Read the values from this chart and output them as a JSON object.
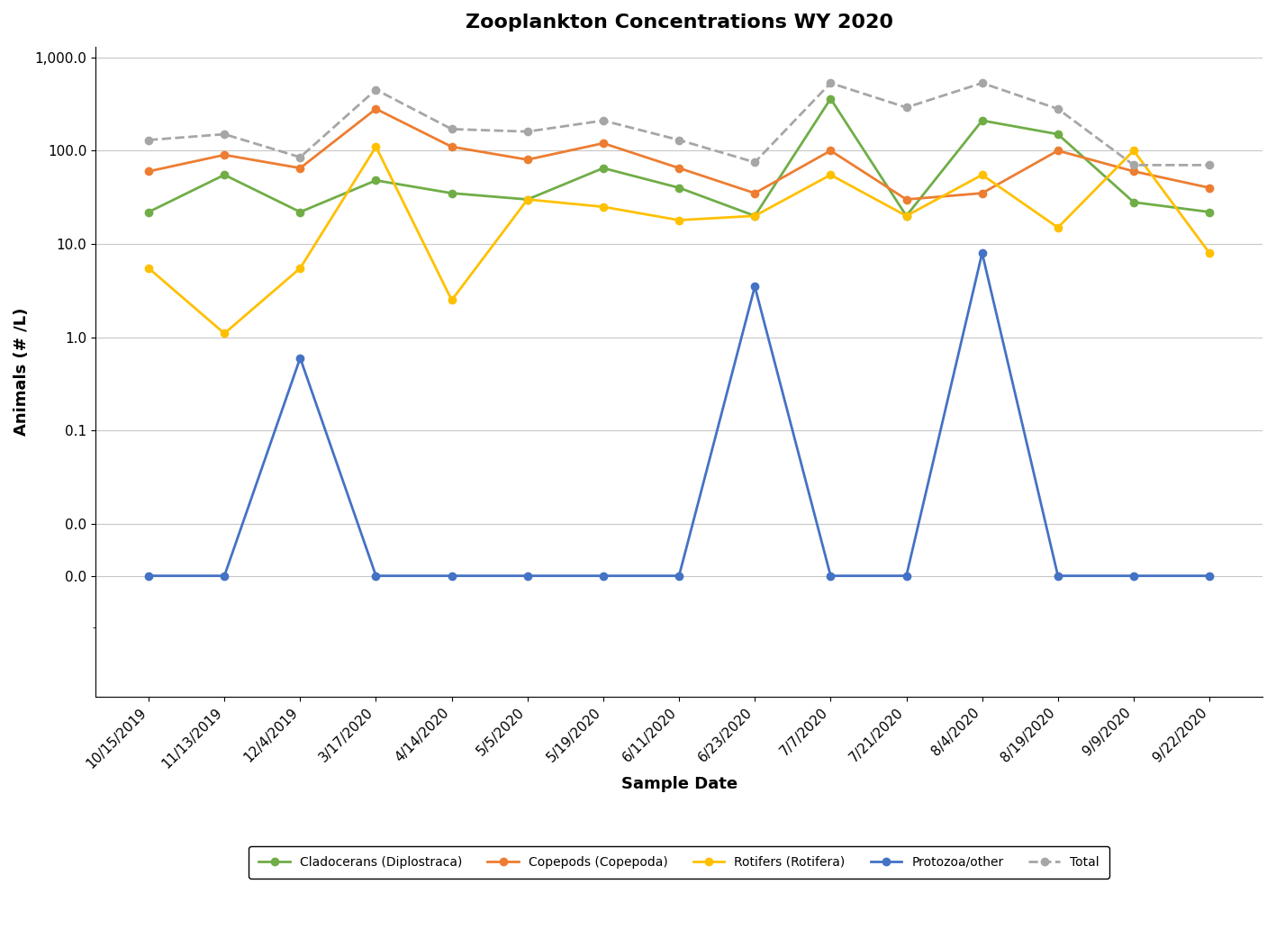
{
  "title": "Zooplankton Concentrations WY 2020",
  "xlabel": "Sample Date",
  "ylabel": "Animals (# /L)",
  "dates": [
    "10/15/2019",
    "11/13/2019",
    "12/4/2019",
    "3/17/2020",
    "4/14/2020",
    "5/5/2020",
    "5/19/2020",
    "6/11/2020",
    "6/23/2020",
    "7/7/2020",
    "7/21/2020",
    "8/4/2020",
    "8/19/2020",
    "9/9/2020",
    "9/22/2020"
  ],
  "series": {
    "Cladocerans (Diplostraca)": {
      "color": "#70AD47",
      "values": [
        22,
        55,
        22,
        48,
        35,
        30,
        65,
        40,
        20,
        360,
        20,
        210,
        150,
        28,
        22
      ],
      "marker": "o",
      "linestyle": "-",
      "linewidth": 2.0,
      "markersize": 6
    },
    "Copepods (Copepoda)": {
      "color": "#ED7D31",
      "values": [
        60,
        90,
        65,
        280,
        110,
        80,
        120,
        65,
        35,
        100,
        30,
        35,
        100,
        60,
        40
      ],
      "marker": "o",
      "linestyle": "-",
      "linewidth": 2.0,
      "markersize": 6
    },
    "Rotifers (Rotifera)": {
      "color": "#FFC000",
      "values": [
        5.5,
        1.1,
        5.5,
        110,
        2.5,
        30,
        25,
        18,
        20,
        55,
        20,
        55,
        15,
        100,
        8
      ],
      "marker": "o",
      "linestyle": "-",
      "linewidth": 2.0,
      "markersize": 6
    },
    "Protozoa/other": {
      "color": "#4472C4",
      "values": [
        0,
        0,
        0.6,
        0,
        0,
        0,
        0,
        0,
        3.5,
        0,
        0,
        8.0,
        0,
        0,
        0
      ],
      "marker": "o",
      "linestyle": "-",
      "linewidth": 2.0,
      "markersize": 6
    },
    "Total": {
      "color": "#A6A6A6",
      "values": [
        130,
        150,
        85,
        450,
        170,
        160,
        210,
        130,
        75,
        530,
        290,
        530,
        280,
        70,
        70
      ],
      "marker": "o",
      "linestyle": "--",
      "linewidth": 2.0,
      "markersize": 6
    }
  },
  "symlog_linthresh": 0.01,
  "ylim": [
    -0.055,
    1300
  ],
  "yticks": [
    1000.0,
    100.0,
    10.0,
    1.0,
    0.1,
    0.01,
    0.0
  ],
  "ytick_labels": [
    "1,000.0",
    "100.0",
    "10.0",
    "1.0",
    "0.1",
    "0.0",
    "0.0"
  ],
  "background_color": "#FFFFFF",
  "grid_color": "#C8C8C8",
  "title_fontsize": 16,
  "axis_label_fontsize": 13,
  "tick_fontsize": 11,
  "legend_fontsize": 10
}
